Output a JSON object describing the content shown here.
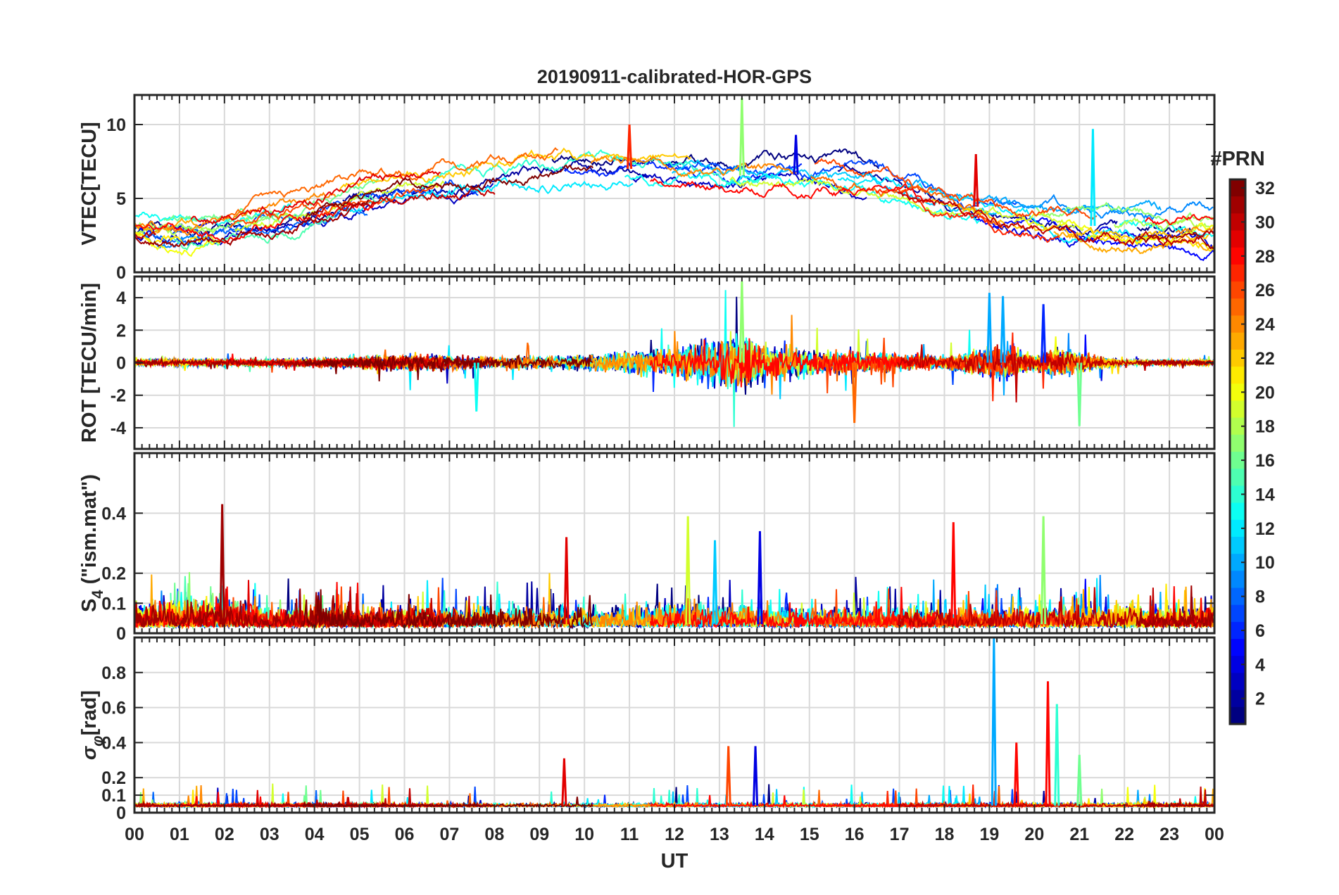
{
  "chart_data": {
    "type": "line",
    "title": "20190911-calibrated-HOR-GPS",
    "xlabel": "UT",
    "x_tick_labels": [
      "00",
      "01",
      "02",
      "03",
      "04",
      "05",
      "06",
      "07",
      "08",
      "09",
      "10",
      "11",
      "12",
      "13",
      "14",
      "15",
      "16",
      "17",
      "18",
      "19",
      "20",
      "21",
      "22",
      "23",
      "00"
    ],
    "x_range_hours": [
      0,
      24
    ],
    "grid": true,
    "colorbar": {
      "label": "#PRN",
      "range": [
        1,
        32
      ],
      "colormap": "jet",
      "ticks": [
        2,
        4,
        6,
        8,
        10,
        12,
        14,
        16,
        18,
        20,
        22,
        24,
        26,
        28,
        30,
        32
      ],
      "tick_labels": [
        "2",
        "4",
        "6",
        "8",
        "10",
        "12",
        "14",
        "16",
        "18",
        "20",
        "22",
        "24",
        "26",
        "28",
        "30",
        "32"
      ]
    },
    "panels": [
      {
        "id": "vtec",
        "ylabel": "VTEC[TECU]",
        "ylim": [
          0,
          12
        ],
        "ticks": [
          0,
          5,
          10
        ],
        "tick_labels": [
          "0",
          "5",
          "10"
        ],
        "trend": {
          "hours": [
            0,
            1,
            2,
            3,
            4,
            5,
            6,
            7,
            8,
            9,
            10,
            11,
            12,
            13,
            14,
            15,
            16,
            17,
            18,
            19,
            20,
            21,
            22,
            23,
            24
          ],
          "values": [
            3.0,
            2.7,
            2.9,
            3.4,
            4.2,
            5.0,
            5.4,
            6.0,
            6.4,
            6.7,
            6.9,
            7.0,
            6.8,
            6.5,
            6.6,
            6.6,
            6.3,
            5.9,
            5.0,
            4.2,
            3.6,
            3.2,
            3.0,
            2.9,
            2.9
          ]
        },
        "annotations": [
          {
            "prn": 17,
            "hour": 13.5,
            "value": 11.8
          },
          {
            "prn": 27,
            "hour": 11.0,
            "value": 10.0
          },
          {
            "prn": 12,
            "hour": 21.3,
            "value": 9.7
          },
          {
            "prn": 4,
            "hour": 14.7,
            "value": 9.3
          },
          {
            "prn": 29,
            "hour": 18.7,
            "value": 8.0
          }
        ]
      },
      {
        "id": "rot",
        "ylabel": "ROT [TECU/min]",
        "ylim": [
          -5.3,
          5.3
        ],
        "ticks": [
          -4,
          -2,
          0,
          2,
          4
        ],
        "tick_labels": [
          "-4",
          "-2",
          "0",
          "2",
          "4"
        ],
        "envelope": {
          "hours": [
            0,
            2,
            4,
            5,
            6,
            7,
            8,
            9,
            10,
            11,
            12,
            12.5,
            13,
            13.5,
            14,
            15,
            16,
            17,
            18,
            19,
            19.5,
            20,
            20.5,
            21,
            22,
            24
          ],
          "values": [
            0.25,
            0.25,
            0.3,
            0.45,
            0.7,
            0.55,
            0.5,
            0.55,
            0.6,
            0.9,
            1.0,
            1.6,
            1.9,
            2.2,
            1.5,
            1.0,
            0.9,
            0.6,
            0.5,
            1.1,
            1.3,
            0.5,
            1.2,
            0.8,
            0.2,
            0.2
          ]
        },
        "annotations": [
          {
            "prn": 17,
            "hour": 13.5,
            "value": 5.0
          },
          {
            "prn": 10,
            "hour": 19.0,
            "value": 4.3
          },
          {
            "prn": 10,
            "hour": 19.3,
            "value": 4.1
          },
          {
            "prn": 6,
            "hour": 20.2,
            "value": 3.6
          },
          {
            "prn": 25,
            "hour": 16.0,
            "value": -3.7
          },
          {
            "prn": 16,
            "hour": 21.0,
            "value": -3.9
          },
          {
            "prn": 13,
            "hour": 7.6,
            "value": -3.0
          }
        ]
      },
      {
        "id": "s4",
        "ylabel": "S4 (\"ism.mat\")",
        "ylabel_main": "S",
        "ylabel_sub": "4",
        "ylabel_rest": " (\"ism.mat\")",
        "ylim": [
          0,
          0.6
        ],
        "ticks": [
          0,
          0.1,
          0.2,
          0.4
        ],
        "tick_labels": [
          "0",
          "0.1",
          "0.2",
          "0.4"
        ],
        "envelope": {
          "hours": [
            0,
            1,
            2,
            3,
            4,
            5,
            6,
            7,
            8,
            9,
            10,
            11,
            12,
            13,
            14,
            15,
            16,
            17,
            18,
            19,
            20,
            21,
            22,
            23,
            24
          ],
          "values": [
            0.1,
            0.12,
            0.15,
            0.08,
            0.1,
            0.09,
            0.1,
            0.09,
            0.1,
            0.11,
            0.1,
            0.1,
            0.11,
            0.12,
            0.1,
            0.1,
            0.09,
            0.09,
            0.08,
            0.09,
            0.09,
            0.1,
            0.1,
            0.09,
            0.09
          ]
        },
        "annotations": [
          {
            "prn": 31,
            "hour": 1.95,
            "value": 0.43
          },
          {
            "prn": 19,
            "hour": 12.3,
            "value": 0.39
          },
          {
            "prn": 17,
            "hour": 20.2,
            "value": 0.39
          },
          {
            "prn": 28,
            "hour": 18.2,
            "value": 0.37
          },
          {
            "prn": 4,
            "hour": 13.9,
            "value": 0.34
          },
          {
            "prn": 29,
            "hour": 9.6,
            "value": 0.32
          },
          {
            "prn": 11,
            "hour": 12.9,
            "value": 0.31
          }
        ]
      },
      {
        "id": "sigma_phi",
        "ylabel": "σφ[rad]",
        "ylabel_main": "σ",
        "ylabel_sub": "φ",
        "ylabel_rest": "[rad]",
        "ylim": [
          0,
          1.0
        ],
        "ticks": [
          0,
          0.1,
          0.2,
          0.4,
          0.6,
          0.8
        ],
        "tick_labels": [
          "0",
          "0.1",
          "0.2",
          "0.4",
          "0.6",
          "0.8"
        ],
        "envelope": {
          "hours": [
            0,
            24
          ],
          "values": [
            0.05,
            0.05
          ]
        },
        "annotations": [
          {
            "prn": 10,
            "hour": 19.1,
            "value": 1.0
          },
          {
            "prn": 28,
            "hour": 20.3,
            "value": 0.75
          },
          {
            "prn": 14,
            "hour": 20.5,
            "value": 0.62
          },
          {
            "prn": 28,
            "hour": 19.6,
            "value": 0.4
          },
          {
            "prn": 26,
            "hour": 13.2,
            "value": 0.38
          },
          {
            "prn": 4,
            "hour": 13.8,
            "value": 0.38
          },
          {
            "prn": 29,
            "hour": 9.55,
            "value": 0.31
          },
          {
            "prn": 16,
            "hour": 21.0,
            "value": 0.33
          }
        ]
      }
    ]
  }
}
